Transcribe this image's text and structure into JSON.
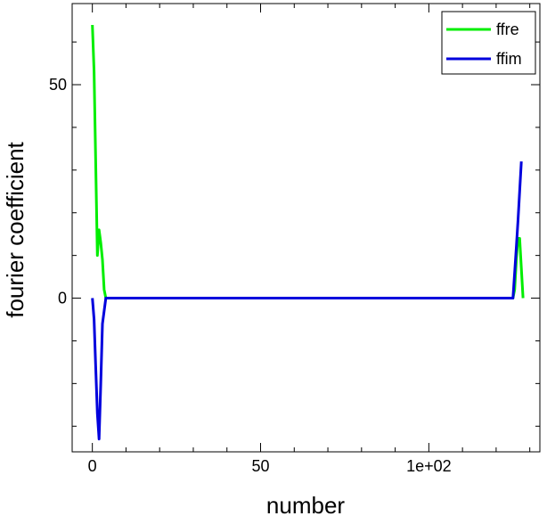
{
  "chart_data": {
    "type": "line",
    "xlabel": "number",
    "ylabel": "fourier coefficient",
    "xlim": [
      -6,
      133
    ],
    "ylim": [
      -36,
      69
    ],
    "xticks": [
      {
        "value": 0,
        "label": "0"
      },
      {
        "value": 50,
        "label": "50"
      },
      {
        "value": 100,
        "label": "1e+02"
      }
    ],
    "yticks": [
      {
        "value": 0,
        "label": "0"
      },
      {
        "value": 50,
        "label": "50"
      }
    ],
    "grid": false,
    "legend_position": "top-right",
    "series": [
      {
        "name": "ffre",
        "color": "#00ee00",
        "x": [
          0,
          0.5,
          1,
          1.5,
          2,
          2.5,
          3,
          3.5,
          4,
          5,
          20,
          40,
          60,
          80,
          100,
          120,
          125,
          125.5,
          126,
          126.5,
          127,
          127.5,
          128
        ],
        "y": [
          64,
          53,
          32,
          10,
          16,
          13,
          9,
          2,
          0,
          0,
          0,
          0,
          0,
          0,
          0,
          0,
          0,
          2,
          9,
          14,
          14,
          7,
          0
        ]
      },
      {
        "name": "ffim",
        "color": "#0000dd",
        "x": [
          0,
          0.5,
          1,
          1.5,
          2,
          2.5,
          3,
          4,
          20,
          40,
          60,
          80,
          100,
          120,
          125,
          125.5,
          126,
          126.5,
          127,
          127.5
        ],
        "y": [
          0,
          -5,
          -16,
          -27,
          -33,
          -20,
          -6,
          0,
          0,
          0,
          0,
          0,
          0,
          0,
          0,
          6,
          12,
          18,
          25,
          32
        ]
      }
    ]
  }
}
